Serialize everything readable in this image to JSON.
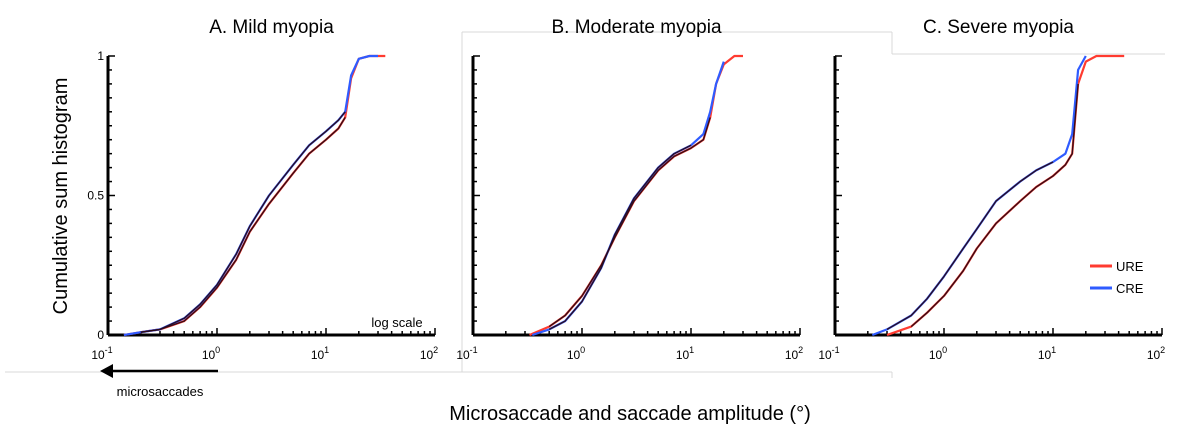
{
  "figure": {
    "y_label": "Cumulative sum histogram",
    "x_label": "Microsaccade and saccade amplitude (°)",
    "x_note": "log scale",
    "arrow_label": "microsaccades",
    "legend": [
      {
        "label": "URE",
        "color": "#ff3b30"
      },
      {
        "label": "CRE",
        "color": "#2f5bff"
      }
    ],
    "overlay_color": "#2b0b16"
  },
  "chart_data": [
    {
      "type": "line",
      "title": "A. Mild myopia",
      "xscale": "log",
      "xlim": [
        0.1,
        100
      ],
      "ylim": [
        0,
        1
      ],
      "yticks": [
        "0",
        "0.5",
        "1"
      ],
      "xticks": [
        {
          "base": "10",
          "exp": "-1"
        },
        {
          "base": "10",
          "exp": "0"
        },
        {
          "base": "10",
          "exp": "1"
        },
        {
          "base": "10",
          "exp": "2"
        }
      ],
      "series": [
        {
          "name": "URE",
          "x": [
            0.14,
            0.2,
            0.3,
            0.5,
            0.7,
            1,
            1.5,
            2,
            3,
            5,
            7,
            10,
            13,
            15,
            17,
            20,
            25,
            35
          ],
          "y": [
            0,
            0.01,
            0.02,
            0.05,
            0.1,
            0.17,
            0.27,
            0.37,
            0.47,
            0.58,
            0.65,
            0.7,
            0.74,
            0.78,
            0.92,
            0.99,
            1,
            1
          ]
        },
        {
          "name": "CRE",
          "x": [
            0.14,
            0.2,
            0.3,
            0.5,
            0.7,
            1,
            1.5,
            2,
            3,
            5,
            7,
            10,
            13,
            15,
            17,
            20,
            25,
            30
          ],
          "y": [
            0,
            0.01,
            0.02,
            0.06,
            0.11,
            0.18,
            0.29,
            0.39,
            0.5,
            0.61,
            0.68,
            0.73,
            0.77,
            0.8,
            0.93,
            0.99,
            1,
            1
          ]
        }
      ]
    },
    {
      "type": "line",
      "title": "B. Moderate myopia",
      "xscale": "log",
      "xlim": [
        0.1,
        100
      ],
      "ylim": [
        0,
        1
      ],
      "yticks": [],
      "xticks": [
        {
          "base": "10",
          "exp": "-1"
        },
        {
          "base": "10",
          "exp": "0"
        },
        {
          "base": "10",
          "exp": "1"
        },
        {
          "base": "10",
          "exp": "2"
        }
      ],
      "series": [
        {
          "name": "URE",
          "x": [
            0.33,
            0.5,
            0.7,
            1,
            1.5,
            2,
            3,
            5,
            7,
            10,
            13,
            15,
            17,
            20,
            25,
            30
          ],
          "y": [
            0,
            0.03,
            0.07,
            0.14,
            0.25,
            0.35,
            0.48,
            0.59,
            0.64,
            0.67,
            0.7,
            0.78,
            0.9,
            0.97,
            1,
            1
          ]
        },
        {
          "name": "CRE",
          "x": [
            0.35,
            0.5,
            0.7,
            1,
            1.5,
            2,
            3,
            5,
            7,
            10,
            13,
            15,
            17,
            20
          ],
          "y": [
            0,
            0.02,
            0.05,
            0.12,
            0.24,
            0.36,
            0.49,
            0.6,
            0.65,
            0.68,
            0.72,
            0.8,
            0.9,
            0.98
          ]
        }
      ]
    },
    {
      "type": "line",
      "title": "C. Severe myopia",
      "xscale": "log",
      "xlim": [
        0.1,
        100
      ],
      "ylim": [
        0,
        1
      ],
      "yticks": [],
      "xticks": [
        {
          "base": "10",
          "exp": "-1"
        },
        {
          "base": "10",
          "exp": "0"
        },
        {
          "base": "10",
          "exp": "1"
        },
        {
          "base": "10",
          "exp": "2"
        }
      ],
      "series": [
        {
          "name": "URE",
          "x": [
            0.3,
            0.5,
            0.7,
            1,
            1.5,
            2,
            3,
            5,
            7,
            10,
            13,
            15,
            17,
            20,
            25,
            30,
            45
          ],
          "y": [
            0,
            0.03,
            0.08,
            0.14,
            0.23,
            0.31,
            0.4,
            0.48,
            0.53,
            0.57,
            0.61,
            0.65,
            0.9,
            0.98,
            1,
            1,
            1
          ]
        },
        {
          "name": "CRE",
          "x": [
            0.22,
            0.3,
            0.5,
            0.7,
            1,
            1.5,
            2,
            3,
            5,
            7,
            10,
            13,
            15,
            17,
            20
          ],
          "y": [
            0,
            0.02,
            0.07,
            0.13,
            0.21,
            0.31,
            0.38,
            0.48,
            0.55,
            0.59,
            0.62,
            0.65,
            0.72,
            0.95,
            1
          ]
        }
      ]
    }
  ]
}
